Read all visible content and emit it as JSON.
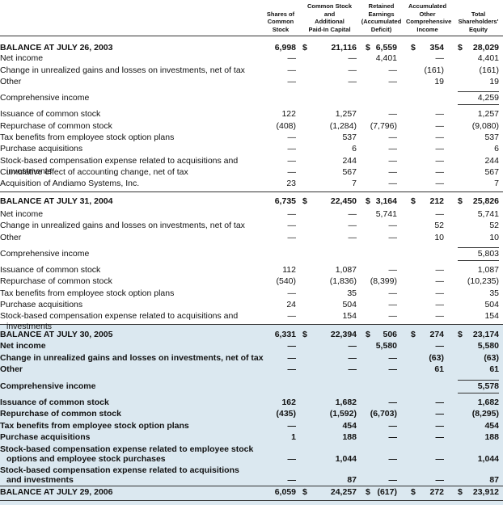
{
  "header": {
    "columns": [
      "Shares of\nCommon\nStock",
      "Common Stock\nand\nAdditional\nPaid-In Capital",
      "Retained\nEarnings\n(Accumulated\nDeficit)",
      "Accumulated\nOther\nComprehensive\nIncome",
      "Total\nShareholders'\nEquity"
    ]
  },
  "table": {
    "rows": [
      {
        "label": "BALANCE AT JULY 26, 2003",
        "cells": [
          "6,998",
          "$ 21,116",
          "$ 6,559",
          "$ 354",
          "$ 28,029"
        ]
      },
      {
        "label": "Net income",
        "cells": [
          "—",
          "—",
          "4,401",
          "—",
          "4,401"
        ]
      },
      {
        "label": "Change in unrealized gains and losses on investments, net of tax",
        "cells": [
          "—",
          "—",
          "—",
          "(161)",
          "(161)"
        ]
      },
      {
        "label": "Other",
        "cells": [
          "—",
          "—",
          "—",
          "19",
          "19"
        ]
      },
      {
        "label": "Comprehensive income",
        "cells": [
          null,
          null,
          null,
          null,
          "4,259"
        ]
      },
      {
        "label": "Issuance of common stock",
        "cells": [
          "122",
          "1,257",
          "—",
          "—",
          "1,257"
        ]
      },
      {
        "label": "Repurchase of common stock",
        "cells": [
          "(408)",
          "(1,284)",
          "(7,796)",
          "—",
          "(9,080)"
        ]
      },
      {
        "label": "Tax benefits from employee stock option plans",
        "cells": [
          "—",
          "537",
          "—",
          "—",
          "537"
        ]
      },
      {
        "label": "Purchase acquisitions",
        "cells": [
          "—",
          "6",
          "—",
          "—",
          "6"
        ]
      },
      {
        "label": "Stock-based compensation expense related to acquisitions and investments",
        "cells": [
          "—",
          "244",
          "—",
          "—",
          "244"
        ]
      },
      {
        "label": "Cumulative effect of accounting change, net of tax",
        "cells": [
          "—",
          "567",
          "—",
          "—",
          "567"
        ]
      },
      {
        "label": "Acquisition of Andiamo Systems, Inc.",
        "cells": [
          "23",
          "7",
          "—",
          "—",
          "7"
        ]
      },
      {
        "label": "BALANCE AT JULY 31, 2004",
        "cells": [
          "6,735",
          "$ 22,450",
          "$ 3,164",
          "$ 212",
          "$ 25,826"
        ]
      },
      {
        "label": "Net income",
        "cells": [
          "—",
          "—",
          "5,741",
          "—",
          "5,741"
        ]
      },
      {
        "label": "Change in unrealized gains and losses on investments, net of tax",
        "cells": [
          "—",
          "—",
          "—",
          "52",
          "52"
        ]
      },
      {
        "label": "Other",
        "cells": [
          "—",
          "—",
          "—",
          "10",
          "10"
        ]
      },
      {
        "label": "Comprehensive income",
        "cells": [
          null,
          null,
          null,
          null,
          "5,803"
        ]
      },
      {
        "label": "Issuance of common stock",
        "cells": [
          "112",
          "1,087",
          "—",
          "—",
          "1,087"
        ]
      },
      {
        "label": "Repurchase of common stock",
        "cells": [
          "(540)",
          "(1,836)",
          "(8,399)",
          "—",
          "(10,235)"
        ]
      },
      {
        "label": "Tax benefits from employee stock option plans",
        "cells": [
          "—",
          "35",
          "—",
          "—",
          "35"
        ]
      },
      {
        "label": "Purchase acquisitions",
        "cells": [
          "24",
          "504",
          "—",
          "—",
          "504"
        ]
      },
      {
        "label": "Stock-based compensation expense related to acquisitions and investments",
        "cells": [
          "—",
          "154",
          "—",
          "—",
          "154"
        ]
      },
      {
        "label": "BALANCE AT JULY 30, 2005",
        "cells": [
          "6,331",
          "$ 22,394",
          "$ 506",
          "$ 274",
          "$ 23,174"
        ]
      },
      {
        "label": "Net income",
        "cells": [
          "—",
          "—",
          "5,580",
          "—",
          "5,580"
        ]
      },
      {
        "label": "Change in unrealized gains and losses on investments, net of tax",
        "cells": [
          "—",
          "—",
          "—",
          "(63)",
          "(63)"
        ]
      },
      {
        "label": "Other",
        "cells": [
          "—",
          "—",
          "—",
          "61",
          "61"
        ]
      },
      {
        "label": "Comprehensive income",
        "cells": [
          null,
          null,
          null,
          null,
          "5,578"
        ]
      },
      {
        "label": "Issuance of common stock",
        "cells": [
          "162",
          "1,682",
          "—",
          "—",
          "1,682"
        ]
      },
      {
        "label": "Repurchase of common stock",
        "cells": [
          "(435)",
          "(1,592)",
          "(6,703)",
          "—",
          "(8,295)"
        ]
      },
      {
        "label": "Tax benefits from employee stock option plans",
        "cells": [
          "—",
          "454",
          "—",
          "—",
          "454"
        ]
      },
      {
        "label": "Purchase acquisitions",
        "cells": [
          "1",
          "188",
          "—",
          "—",
          "188"
        ]
      },
      {
        "label": "Stock-based compensation expense related to employee stock\noptions and employee stock purchases",
        "cells": [
          "—",
          "1,044",
          "—",
          "—",
          "1,044"
        ]
      },
      {
        "label": "Stock-based compensation expense related to acquisitions\nand investments",
        "cells": [
          "—",
          "87",
          "—",
          "—",
          "87"
        ]
      },
      {
        "label": "BALANCE AT JULY 29, 2006",
        "cells": [
          "6,059",
          "$ 24,257",
          "$ (617)",
          "$ 272",
          "$ 23,912"
        ]
      }
    ]
  }
}
